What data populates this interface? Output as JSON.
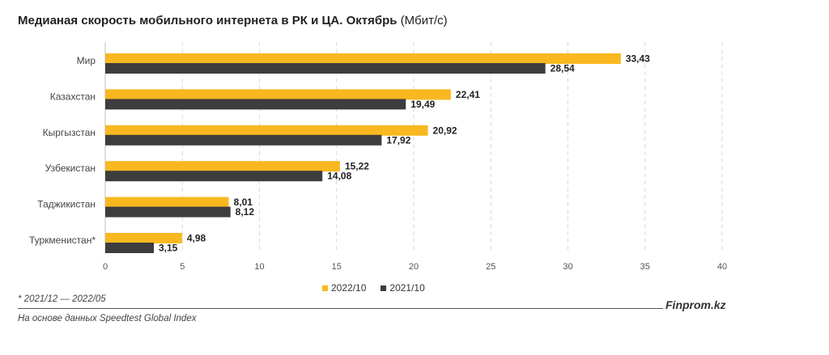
{
  "header": {
    "title_bold": "Медианая скорость мобильного интернета в РК и ЦА. Октябрь",
    "title_unit": "(Мбит/с)"
  },
  "colors": {
    "series_2022": "#f9b81f",
    "series_2021": "#3d3d3d",
    "grid": "#d9d9d9"
  },
  "chart_data": {
    "type": "bar",
    "orientation": "horizontal",
    "categories": [
      "Мир",
      "Казахстан",
      "Кыргызстан",
      "Узбекистан",
      "Таджикистан",
      "Туркменистан*"
    ],
    "series": [
      {
        "name": "2022/10",
        "values": [
          33.43,
          22.41,
          20.92,
          15.22,
          8.01,
          4.98
        ],
        "labels": [
          "33,43",
          "22,41",
          "20,92",
          "15,22",
          "8,01",
          "4,98"
        ]
      },
      {
        "name": "2021/10",
        "values": [
          28.54,
          19.49,
          17.92,
          14.08,
          8.12,
          3.15
        ],
        "labels": [
          "28,54",
          "19,49",
          "17,92",
          "14,08",
          "8,12",
          "3,15"
        ]
      }
    ],
    "xlim": [
      0,
      40
    ],
    "xticks": [
      0,
      5,
      10,
      15,
      20,
      25,
      30,
      35,
      40
    ],
    "grid": "vertical dashed",
    "legend_position": "bottom"
  },
  "footer": {
    "footnote": "* 2021/12 — 2022/05",
    "source": "На основе данных Speedtest Global Index",
    "brand": "Finprom.kz"
  }
}
